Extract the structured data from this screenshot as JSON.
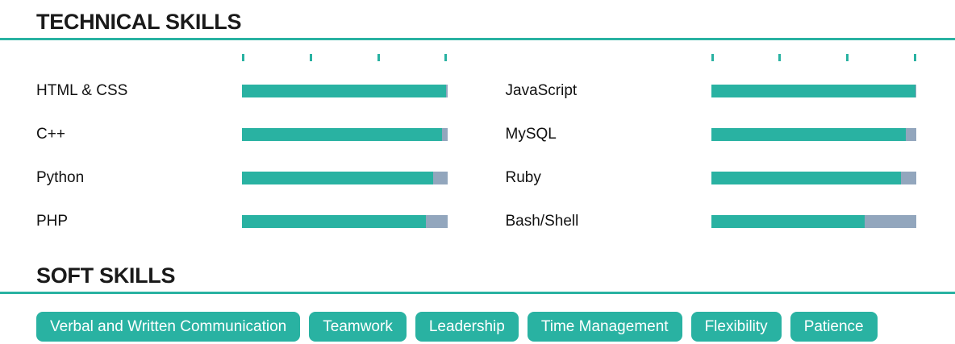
{
  "sections": {
    "technical": {
      "title": "TECHNICAL SKILLS",
      "columns": [
        {
          "skills": [
            {
              "name": "HTML & CSS",
              "level_pct": 99.5
            },
            {
              "name": "C++",
              "level_pct": 97.5
            },
            {
              "name": "Python",
              "level_pct": 93
            },
            {
              "name": "PHP",
              "level_pct": 89.5
            }
          ]
        },
        {
          "skills": [
            {
              "name": "JavaScript",
              "level_pct": 99.5
            },
            {
              "name": "MySQL",
              "level_pct": 95
            },
            {
              "name": "Ruby",
              "level_pct": 92.5
            },
            {
              "name": "Bash/Shell",
              "level_pct": 75
            }
          ]
        }
      ]
    },
    "soft": {
      "title": "SOFT SKILLS",
      "tags": [
        "Verbal and Written Communication",
        "Teamwork",
        "Leadership",
        "Time Management",
        "Flexibility",
        "Patience"
      ]
    }
  },
  "chart_data": {
    "type": "bar",
    "title": "TECHNICAL SKILLS",
    "orientation": "horizontal",
    "value_unit": "percent",
    "xlim": [
      0,
      100
    ],
    "tick_positions_pct": [
      0,
      33.3,
      66.7,
      100
    ],
    "groups": [
      {
        "categories": [
          "HTML & CSS",
          "C++",
          "Python",
          "PHP"
        ],
        "values": [
          99.5,
          97.5,
          93,
          89.5
        ]
      },
      {
        "categories": [
          "JavaScript",
          "MySQL",
          "Ruby",
          "Bash/Shell"
        ],
        "values": [
          99.5,
          95,
          92.5,
          75
        ]
      }
    ]
  },
  "colors": {
    "accent": "#29b2a2",
    "track": "#92a6bd",
    "heading_text": "#1a1a1a",
    "label_text": "#111111",
    "tag_text": "#ffffff"
  }
}
